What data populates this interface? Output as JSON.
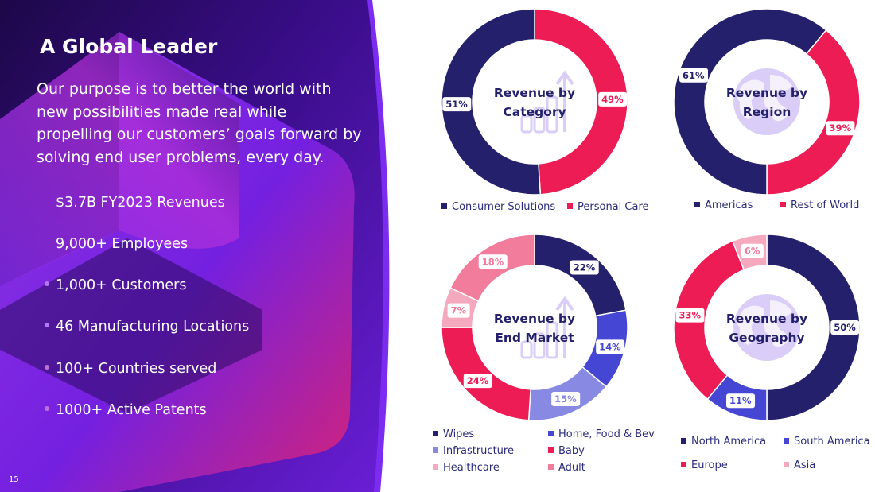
{
  "page": {
    "title": "A Global Leader",
    "purpose": "Our purpose is to better the world with new possibilities made real while propelling our customers’ goals forward by solving end user problems, every day.",
    "page_number": "15",
    "bullets": [
      "$3.7B FY2023 Revenues",
      "9,000+ Employees",
      "1,000+ Customers",
      "46 Manufacturing Locations",
      "100+ Countries served",
      "1000+ Active Patents"
    ]
  },
  "colors": {
    "navy": "#24206b",
    "red": "#ee1c55",
    "blue": "#4646d4",
    "lavender": "#8789e2",
    "pink": "#f27c9c",
    "lightpink": "#f5a9bf",
    "purple": "#7b2cf0",
    "deep_purple": "#2a0b5e",
    "magenta": "#d6246a"
  },
  "icons": {
    "category": "bar-chart-growth-icon",
    "region": "globe-icon",
    "end_market": "bar-chart-growth-icon",
    "geography": "globe-icon"
  },
  "chart_data": [
    {
      "type": "pie",
      "title": "Revenue by Category",
      "title_lines": [
        "Revenue by",
        "Category"
      ],
      "categories": [
        "Personal Care",
        "Consumer Solutions"
      ],
      "values": [
        49,
        51
      ],
      "labels": [
        "49%",
        "51%"
      ],
      "colors": [
        "#ee1c55",
        "#24206b"
      ],
      "label_colors": [
        "#ee1c55",
        "#24206b"
      ],
      "legend": [
        "Consumer Solutions",
        "Personal Care"
      ],
      "legend_colors": [
        "#24206b",
        "#ee1c55"
      ],
      "legend_placement": "bottom"
    },
    {
      "type": "pie",
      "title": "Revenue by Region",
      "title_lines": [
        "Revenue by",
        "Region"
      ],
      "categories": [
        "Rest of World",
        "Americas"
      ],
      "values": [
        39,
        61
      ],
      "labels": [
        "39%",
        "61%"
      ],
      "colors": [
        "#ee1c55",
        "#24206b"
      ],
      "label_colors": [
        "#ee1c55",
        "#24206b"
      ],
      "legend": [
        "Americas",
        "Rest of World"
      ],
      "legend_colors": [
        "#24206b",
        "#ee1c55"
      ],
      "legend_placement": "bottom"
    },
    {
      "type": "pie",
      "title": "Revenue by End Market",
      "title_lines": [
        "Revenue by",
        "End Market"
      ],
      "categories": [
        "Wipes",
        "Home, Food & Bev",
        "Infrastructure",
        "Baby",
        "Healthcare",
        "Adult"
      ],
      "values": [
        22,
        14,
        15,
        24,
        7,
        18
      ],
      "labels": [
        "22%",
        "14%",
        "15%",
        "24%",
        "7%",
        "18%"
      ],
      "colors": [
        "#24206b",
        "#4646d4",
        "#8789e2",
        "#ee1c55",
        "#f5a9bf",
        "#f27c9c"
      ],
      "label_colors": [
        "#24206b",
        "#4646d4",
        "#8789e2",
        "#ee1c55",
        "#f27c9c",
        "#f27c9c"
      ],
      "legend": [
        "Wipes",
        "Home, Food & Bev",
        "Infrastructure",
        "Baby",
        "Healthcare",
        "Adult"
      ],
      "legend_colors": [
        "#24206b",
        "#4646d4",
        "#8789e2",
        "#ee1c55",
        "#f5a9bf",
        "#f27c9c"
      ],
      "legend_placement": "bottom"
    },
    {
      "type": "pie",
      "title": "Revenue by Geography",
      "title_lines": [
        "Revenue by",
        "Geography"
      ],
      "categories": [
        "North America",
        "South America",
        "Europe",
        "Asia"
      ],
      "values": [
        50,
        11,
        33,
        6
      ],
      "labels": [
        "50%",
        "11%",
        "33%",
        "6%"
      ],
      "colors": [
        "#24206b",
        "#4646d4",
        "#ee1c55",
        "#f5a9bf"
      ],
      "label_colors": [
        "#24206b",
        "#4646d4",
        "#ee1c55",
        "#f27c9c"
      ],
      "legend": [
        "North America",
        "South America",
        "Europe",
        "Asia"
      ],
      "legend_colors": [
        "#24206b",
        "#4646d4",
        "#ee1c55",
        "#f5a9bf"
      ],
      "legend_placement": "bottom"
    }
  ]
}
